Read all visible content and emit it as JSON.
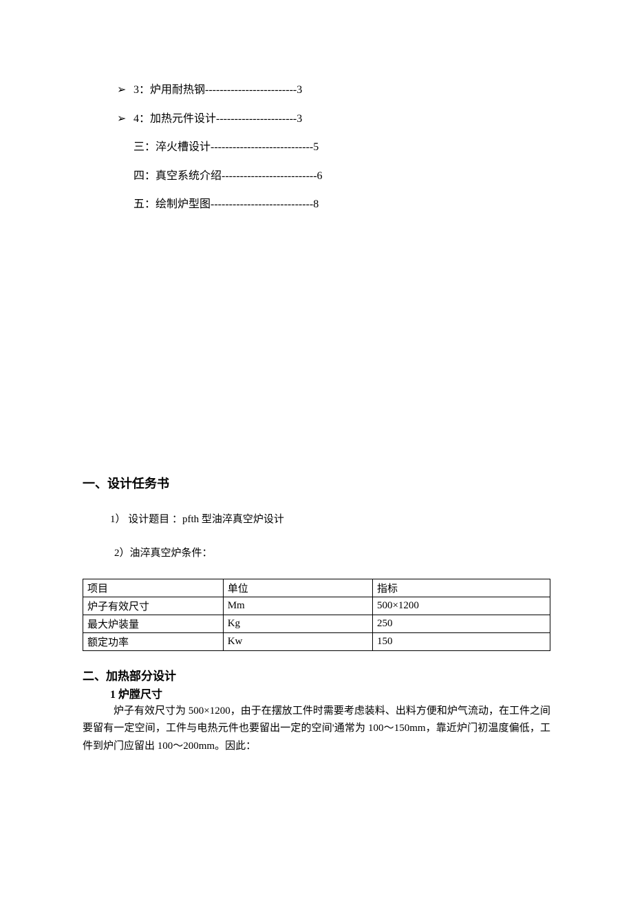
{
  "toc": {
    "items": [
      {
        "bullet": "➢",
        "label": "3：炉用耐热钢",
        "dashes": "-------------------------",
        "page": "3"
      },
      {
        "bullet": "➢",
        "label": "4：加热元件设计",
        "dashes": "----------------------",
        "page": "3"
      },
      {
        "bullet": "",
        "label": "三：淬火槽设计",
        "dashes": "----------------------------",
        "page": "5"
      },
      {
        "bullet": "",
        "label": "四：真空系统介绍",
        "dashes": "--------------------------",
        "page": "6"
      },
      {
        "bullet": "",
        "label": "五：绘制炉型图",
        "dashes": "----------------------------",
        "page": "8"
      }
    ]
  },
  "section1": {
    "heading": "一、设计任务书",
    "item1": "1） 设计题目 ：pfth 型油淬真空炉设计",
    "item2": "2）油淬真空炉条件：",
    "table": {
      "rows": [
        [
          "项目",
          "单位",
          "指标"
        ],
        [
          "炉子有效尺寸",
          "Mm",
          "500×1200"
        ],
        [
          "最大炉装量",
          "Kg",
          "250"
        ],
        [
          "额定功率",
          "Kw",
          "150"
        ]
      ]
    }
  },
  "section2": {
    "heading": "二、加热部分设计",
    "sub1": "1 炉膛尺寸",
    "para1": "炉子有效尺寸为 500×1200，由于在摆放工件时需要考虑装料、出料方便和炉气流动，在工件之间要留有一定空间，工件与电热元件也要留出一定的空间'通常为 100～150mm，靠近炉门初温度偏低，工件到炉门应留出 100～200mm。因此："
  },
  "colors": {
    "text": "#000000",
    "background": "#ffffff",
    "border": "#000000"
  },
  "fonts": {
    "body_family": "SimSun",
    "heading_size_pt": 18,
    "body_size_pt": 15,
    "toc_size_pt": 16
  }
}
